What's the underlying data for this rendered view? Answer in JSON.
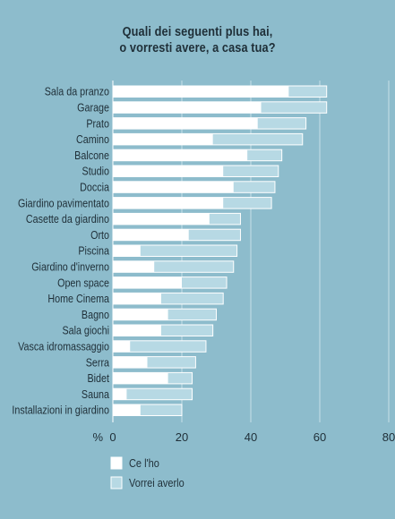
{
  "chart_data": {
    "type": "bar",
    "title_lines": [
      "Quali dei seguenti plus hai,",
      "o vorresti avere, a casa tua?"
    ],
    "categories": [
      "Sala da pranzo",
      "Garage",
      "Prato",
      "Camino",
      "Balcone",
      "Studio",
      "Doccia",
      "Giardino pavimentato",
      "Casette da giardino",
      "Orto",
      "Piscina",
      "Giardino d'inverno",
      "Open space",
      "Home Cinema",
      "Bagno",
      "Sala giochi",
      "Vasca idromassaggio",
      "Serra",
      "Bidet",
      "Sauna",
      "Installazioni in giardino"
    ],
    "series": [
      {
        "name": "Ce l'ho",
        "color": "#ffffff",
        "values": [
          51,
          43,
          42,
          29,
          39,
          32,
          35,
          32,
          28,
          22,
          8,
          12,
          20,
          14,
          16,
          14,
          5,
          10,
          16,
          4,
          8
        ]
      },
      {
        "name": "Vorrei averlo",
        "color": "#b7d9e4",
        "values": [
          62,
          62,
          56,
          55,
          49,
          48,
          47,
          46,
          37,
          37,
          36,
          35,
          33,
          32,
          30,
          29,
          27,
          24,
          23,
          23,
          20
        ]
      }
    ],
    "unit_label": "%",
    "xticks": [
      0,
      20,
      40,
      60,
      80
    ],
    "xlim": [
      0,
      80
    ],
    "grid": true,
    "legend_placement": "bottom-left"
  }
}
